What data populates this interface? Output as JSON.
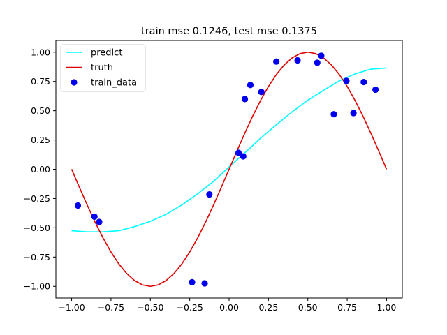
{
  "chart_data": {
    "type": "line",
    "title": "train mse 0.1246, test mse 0.1375",
    "xlabel": "",
    "ylabel": "",
    "xlim": [
      -1.1,
      1.1
    ],
    "ylim": [
      -1.1,
      1.1
    ],
    "xticks": [
      -1.0,
      -0.75,
      -0.5,
      -0.25,
      0.0,
      0.25,
      0.5,
      0.75,
      1.0
    ],
    "xtick_labels": [
      "−1.00",
      "−0.75",
      "−0.50",
      "−0.25",
      "0.00",
      "0.25",
      "0.50",
      "0.75",
      "1.00"
    ],
    "yticks": [
      -1.0,
      -0.75,
      -0.5,
      -0.25,
      0.0,
      0.25,
      0.5,
      0.75,
      1.0
    ],
    "ytick_labels": [
      "−1.00",
      "−0.75",
      "−0.50",
      "−0.25",
      "0.00",
      "0.25",
      "0.50",
      "0.75",
      "1.00"
    ],
    "grid": false,
    "legend_position": "top-left",
    "series": [
      {
        "name": "predict",
        "kind": "line",
        "color": "#00ffff",
        "x": [
          -1.0,
          -0.9,
          -0.8,
          -0.7,
          -0.6,
          -0.5,
          -0.4,
          -0.3,
          -0.2,
          -0.1,
          0.0,
          0.1,
          0.2,
          0.3,
          0.4,
          0.5,
          0.6,
          0.7,
          0.8,
          0.9,
          1.0
        ],
        "y": [
          -0.525,
          -0.535,
          -0.535,
          -0.525,
          -0.49,
          -0.445,
          -0.385,
          -0.305,
          -0.21,
          -0.105,
          0.02,
          0.14,
          0.265,
          0.38,
          0.49,
          0.59,
          0.675,
          0.755,
          0.815,
          0.855,
          0.865
        ]
      },
      {
        "name": "truth",
        "kind": "line",
        "color": "#e00000",
        "x": [
          -1.0,
          -0.95,
          -0.9,
          -0.85,
          -0.8,
          -0.75,
          -0.7,
          -0.65,
          -0.6,
          -0.55,
          -0.5,
          -0.45,
          -0.4,
          -0.35,
          -0.3,
          -0.25,
          -0.2,
          -0.15,
          -0.1,
          -0.05,
          0.0,
          0.05,
          0.1,
          0.15,
          0.2,
          0.25,
          0.3,
          0.35,
          0.4,
          0.45,
          0.5,
          0.55,
          0.6,
          0.65,
          0.7,
          0.75,
          0.8,
          0.85,
          0.9,
          0.95,
          1.0
        ],
        "y": [
          0.0,
          -0.156,
          -0.309,
          -0.454,
          -0.588,
          -0.707,
          -0.809,
          -0.891,
          -0.951,
          -0.988,
          -1.0,
          -0.988,
          -0.951,
          -0.891,
          -0.809,
          -0.707,
          -0.588,
          -0.454,
          -0.309,
          -0.156,
          0.0,
          0.156,
          0.309,
          0.454,
          0.588,
          0.707,
          0.809,
          0.891,
          0.951,
          0.988,
          1.0,
          0.988,
          0.951,
          0.891,
          0.809,
          0.707,
          0.588,
          0.454,
          0.309,
          0.156,
          0.0
        ]
      },
      {
        "name": "train_data",
        "kind": "scatter",
        "color": "#0000ee",
        "x": [
          -0.96,
          -0.855,
          -0.825,
          -0.235,
          -0.155,
          -0.125,
          0.06,
          0.09,
          0.1,
          0.135,
          0.205,
          0.3,
          0.435,
          0.56,
          0.585,
          0.665,
          0.745,
          0.79,
          0.855,
          0.93
        ],
        "y": [
          -0.31,
          -0.405,
          -0.45,
          -0.965,
          -0.975,
          -0.215,
          0.14,
          0.11,
          0.6,
          0.72,
          0.66,
          0.92,
          0.93,
          0.91,
          0.97,
          0.47,
          0.755,
          0.48,
          0.745,
          0.68
        ]
      }
    ]
  }
}
